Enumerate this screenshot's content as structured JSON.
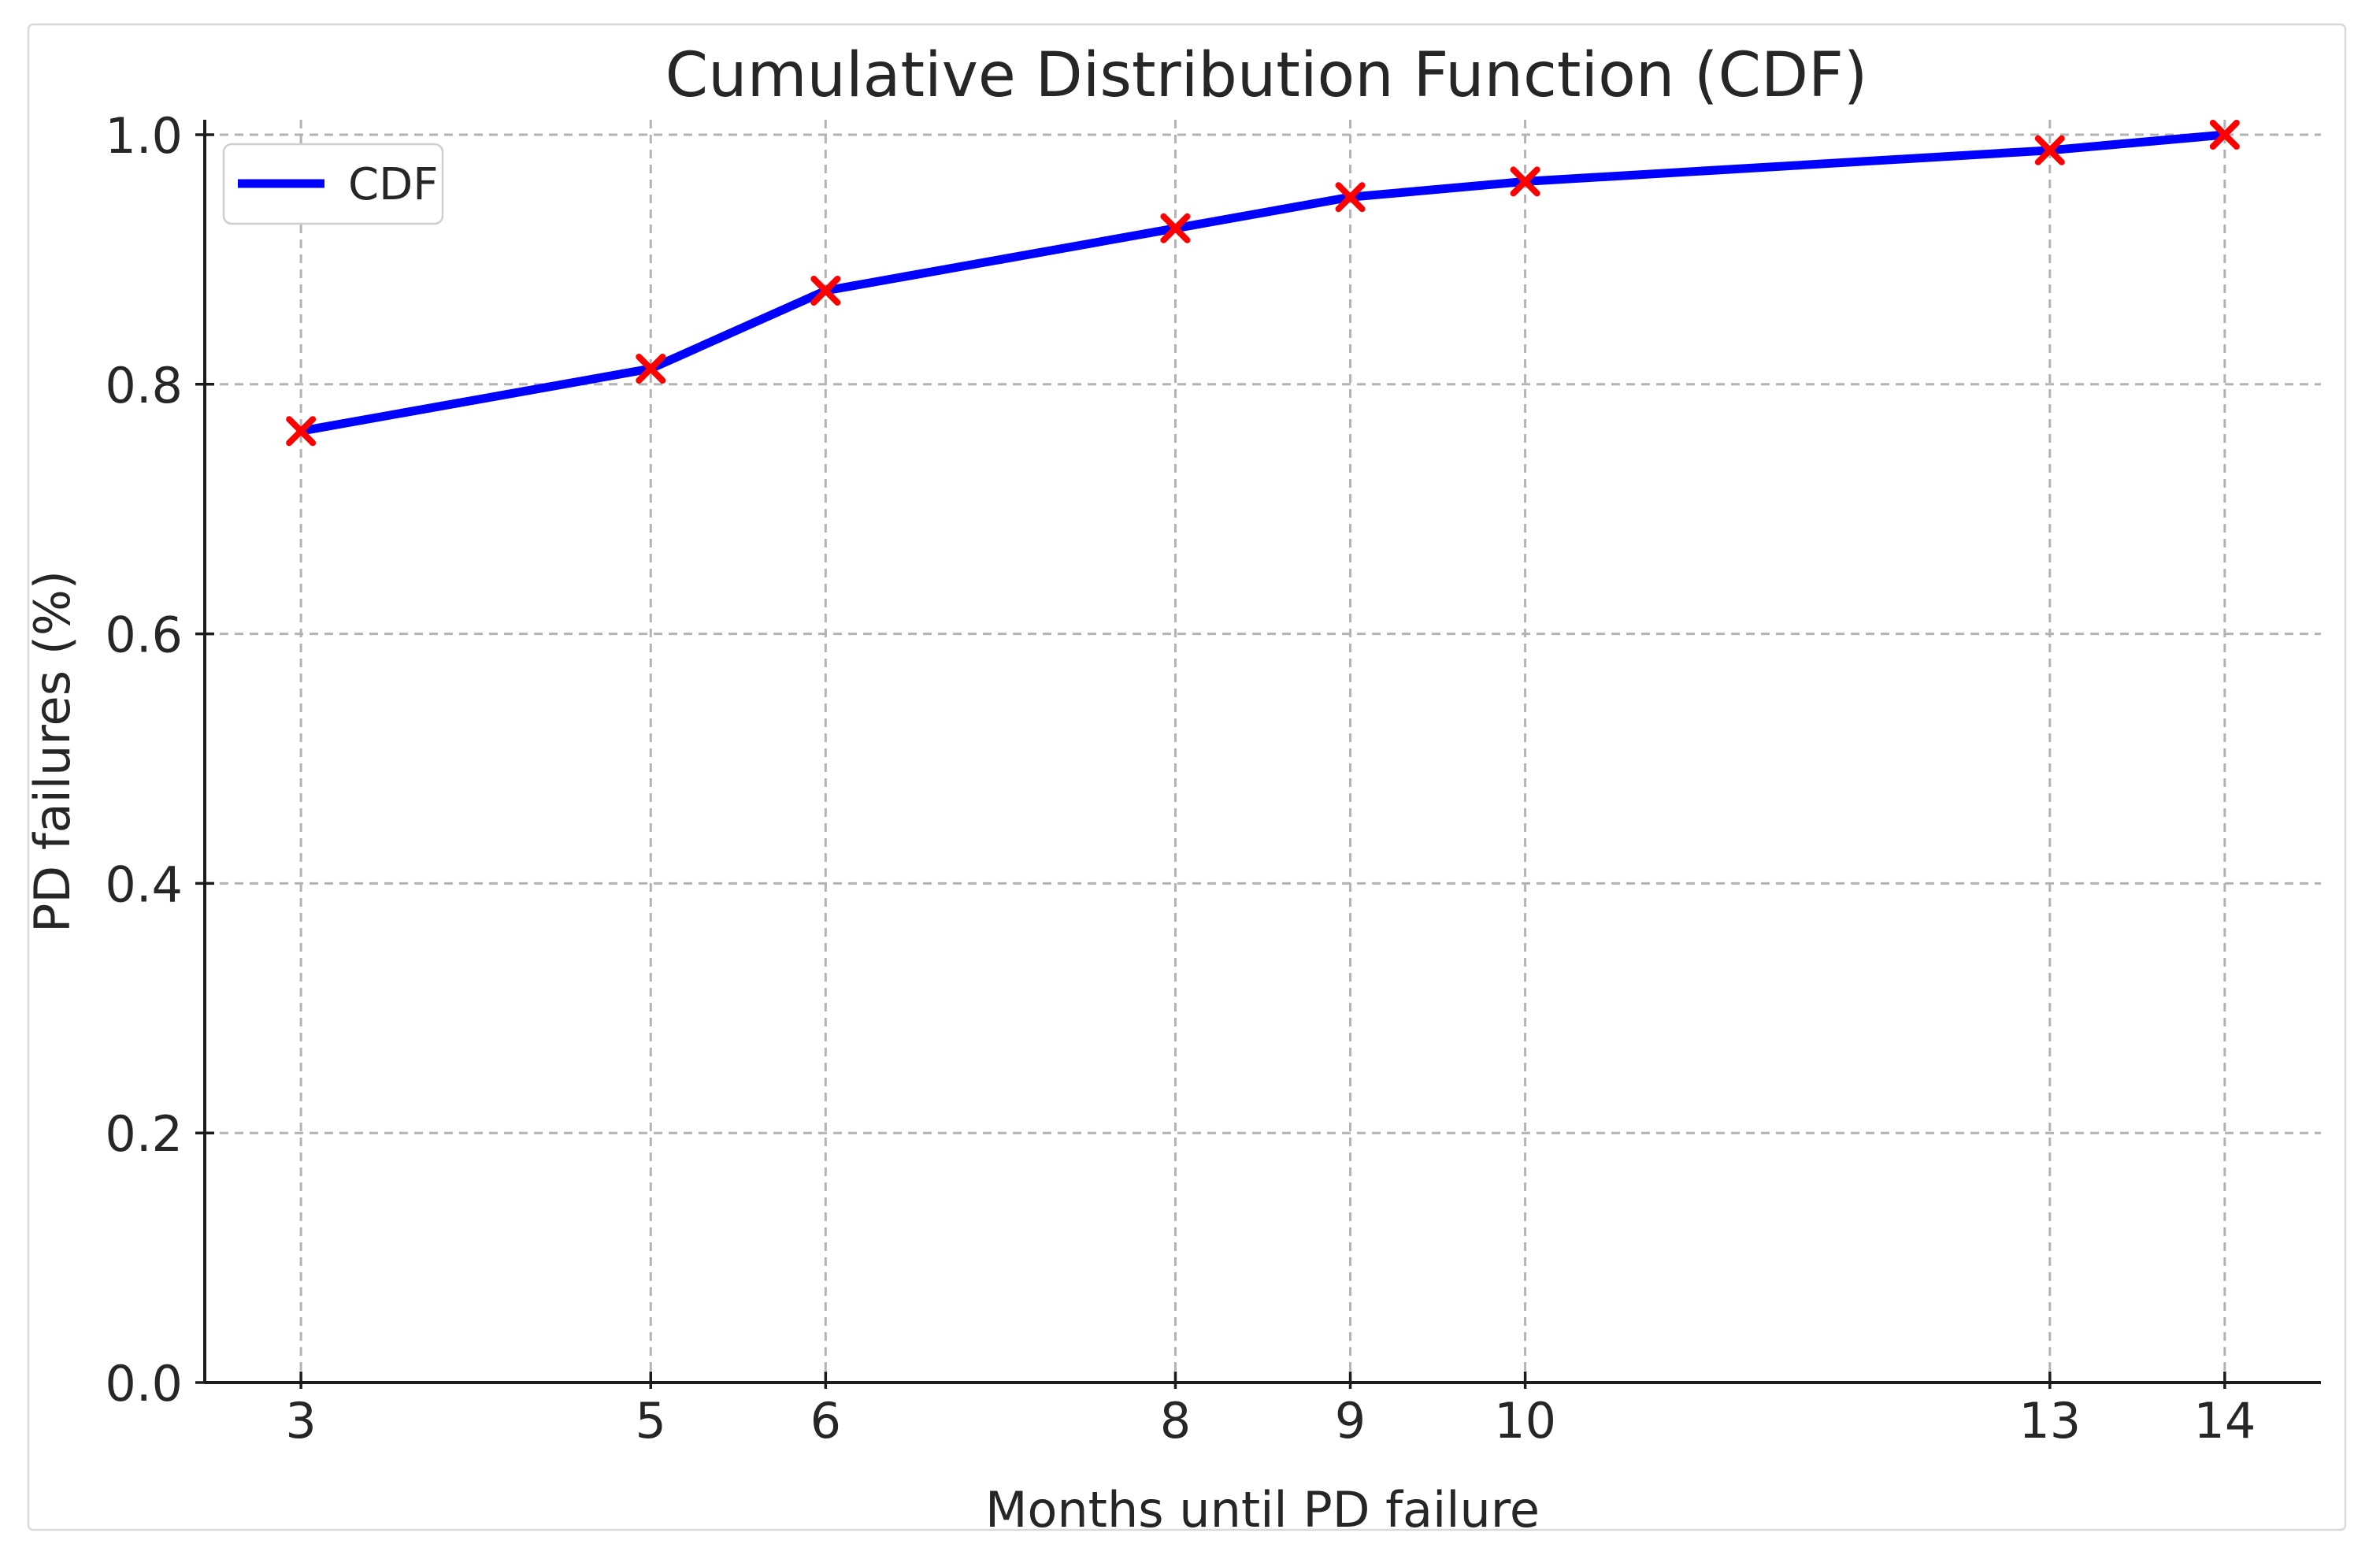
{
  "figure": {
    "title": "Cumulative Distribution Function (CDF)",
    "xlabel": "Months until PD failure",
    "ylabel": "PD failures (%)"
  },
  "legend": {
    "entries": [
      {
        "label": "CDF",
        "color": "#0000ff"
      }
    ],
    "position": "upper left"
  },
  "chart_data": {
    "type": "line",
    "title": "Cumulative Distribution Function (CDF)",
    "xlabel": "Months until PD failure",
    "ylabel": "PD failures (%)",
    "series": [
      {
        "name": "CDF",
        "x": [
          3,
          5,
          6,
          8,
          9,
          10,
          13,
          14
        ],
        "y": [
          0.7625,
          0.8125,
          0.875,
          0.925,
          0.95,
          0.9625,
          0.9875,
          1.0
        ],
        "line_color": "#0000ff",
        "line_width": 11,
        "marker": "x",
        "marker_color": "#ff0000"
      }
    ],
    "x_ticks": [
      3,
      5,
      6,
      8,
      9,
      10,
      13,
      14
    ],
    "x_tick_labels": [
      "3",
      "5",
      "6",
      "8",
      "9",
      "10",
      "13",
      "14"
    ],
    "y_ticks": [
      0.0,
      0.2,
      0.4,
      0.6,
      0.8,
      1.0
    ],
    "y_tick_labels": [
      "0.0",
      "0.2",
      "0.4",
      "0.6",
      "0.8",
      "1.0"
    ],
    "xlim": [
      2.45,
      14.55
    ],
    "ylim": [
      0,
      1.012
    ],
    "grid": true,
    "grid_style": "dashed",
    "legend_position": "upper left",
    "colors": {
      "line": "#0000ff",
      "marker": "#ff0000",
      "grid": "#b3b3b3",
      "spine": "#1c1c1c",
      "text": "#262626",
      "legend_border": "#cfcfcf",
      "figure_border": "#d9d9d9",
      "background": "#ffffff"
    }
  }
}
